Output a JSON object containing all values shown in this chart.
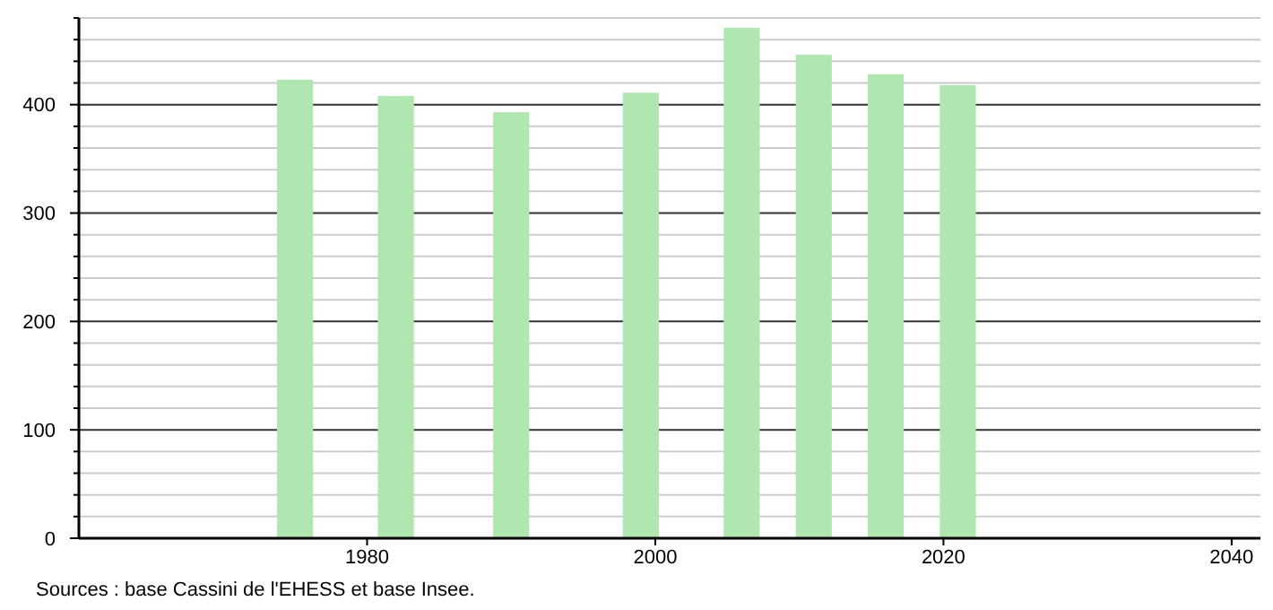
{
  "chart_data": {
    "type": "bar",
    "x": [
      1975,
      1982,
      1990,
      1999,
      2006,
      2011,
      2016,
      2021
    ],
    "values": [
      423,
      408,
      393,
      411,
      471,
      446,
      428,
      418
    ],
    "color": "#b0e6b0",
    "xlim": [
      1960,
      2042
    ],
    "xticks": [
      1980,
      2000,
      2020,
      2040
    ],
    "ylim": [
      0,
      480
    ],
    "yticks": [
      0,
      {
        "value": 20,
        "label": null
      },
      {
        "value": 40,
        "label": null
      },
      {
        "value": 60,
        "label": null
      },
      {
        "value": 80,
        "label": null
      },
      100,
      {
        "value": 120,
        "label": null
      },
      {
        "value": 140,
        "label": null
      },
      {
        "value": 160,
        "label": null
      },
      {
        "value": 180,
        "label": null
      },
      200,
      {
        "value": 220,
        "label": null
      },
      {
        "value": 240,
        "label": null
      },
      {
        "value": 260,
        "label": null
      },
      {
        "value": 280,
        "label": null
      },
      300,
      {
        "value": 320,
        "label": null
      },
      {
        "value": 340,
        "label": null
      },
      {
        "value": 360,
        "label": null
      },
      {
        "value": 380,
        "label": null
      },
      400,
      {
        "value": 420,
        "label": null
      },
      {
        "value": 440,
        "label": null
      },
      {
        "value": 460,
        "label": null
      },
      {
        "value": 480,
        "label": null
      }
    ],
    "grid": "y",
    "annotations": [
      "Sources : base Cassini de l'EHESS et base Insee."
    ]
  }
}
